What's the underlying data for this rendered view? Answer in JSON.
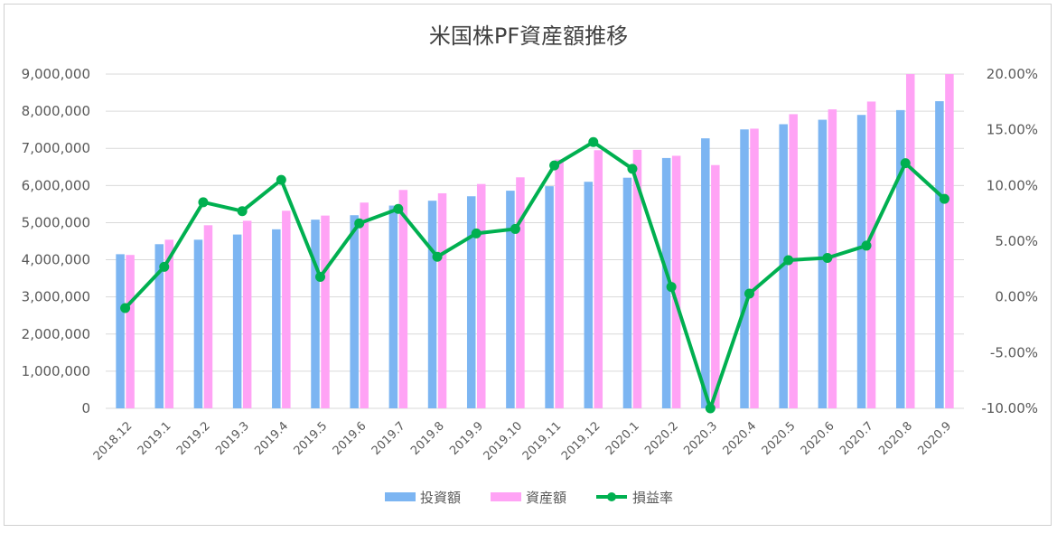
{
  "chart_data": {
    "type": "bar",
    "title": "米国株PF資産額推移",
    "categories": [
      "2018.12",
      "2019.1",
      "2019.2",
      "2019.3",
      "2019.4",
      "2019.5",
      "2019.6",
      "2019.7",
      "2019.8",
      "2019.9",
      "2019.10",
      "2019.11",
      "2019.12",
      "2020.1",
      "2020.2",
      "2020.3",
      "2020.4",
      "2020.5",
      "2020.6",
      "2020.7",
      "2020.8",
      "2020.9"
    ],
    "y_left": {
      "min": 0,
      "max": 9000000,
      "step": 1000000,
      "tick_labels": [
        "0",
        "1,000,000",
        "2,000,000",
        "3,000,000",
        "4,000,000",
        "5,000,000",
        "6,000,000",
        "7,000,000",
        "8,000,000",
        "9,000,000"
      ]
    },
    "y_right": {
      "min": -0.1,
      "max": 0.2,
      "step": 0.05,
      "tick_labels": [
        "-10.00%",
        "-5.00%",
        "0.00%",
        "5.00%",
        "10.00%",
        "15.00%",
        "20.00%"
      ]
    },
    "grid": true,
    "legend_position": "bottom",
    "series": [
      {
        "name": "投資額",
        "type": "bar",
        "axis": "left",
        "color": "#7cb5f2",
        "values": [
          4150000,
          4420000,
          4540000,
          4680000,
          4820000,
          5080000,
          5200000,
          5460000,
          5590000,
          5710000,
          5860000,
          5980000,
          6100000,
          6210000,
          6740000,
          7270000,
          7510000,
          7650000,
          7770000,
          7900000,
          8030000,
          8270000
        ]
      },
      {
        "name": "資産額",
        "type": "bar",
        "axis": "left",
        "color": "#ffa3f5",
        "values": [
          4130000,
          4540000,
          4930000,
          5050000,
          5320000,
          5190000,
          5540000,
          5880000,
          5790000,
          6040000,
          6220000,
          6700000,
          6950000,
          6960000,
          6800000,
          6550000,
          7530000,
          7920000,
          8050000,
          8260000,
          9000000,
          9000000
        ]
      },
      {
        "name": "損益率",
        "type": "line",
        "axis": "right",
        "color": "#00b050",
        "values": [
          -0.01,
          0.027,
          0.085,
          0.077,
          0.105,
          0.018,
          0.066,
          0.079,
          0.036,
          0.057,
          0.061,
          0.118,
          0.139,
          0.115,
          0.009,
          -0.1,
          0.003,
          0.033,
          0.035,
          0.046,
          0.12,
          0.088
        ]
      }
    ]
  }
}
